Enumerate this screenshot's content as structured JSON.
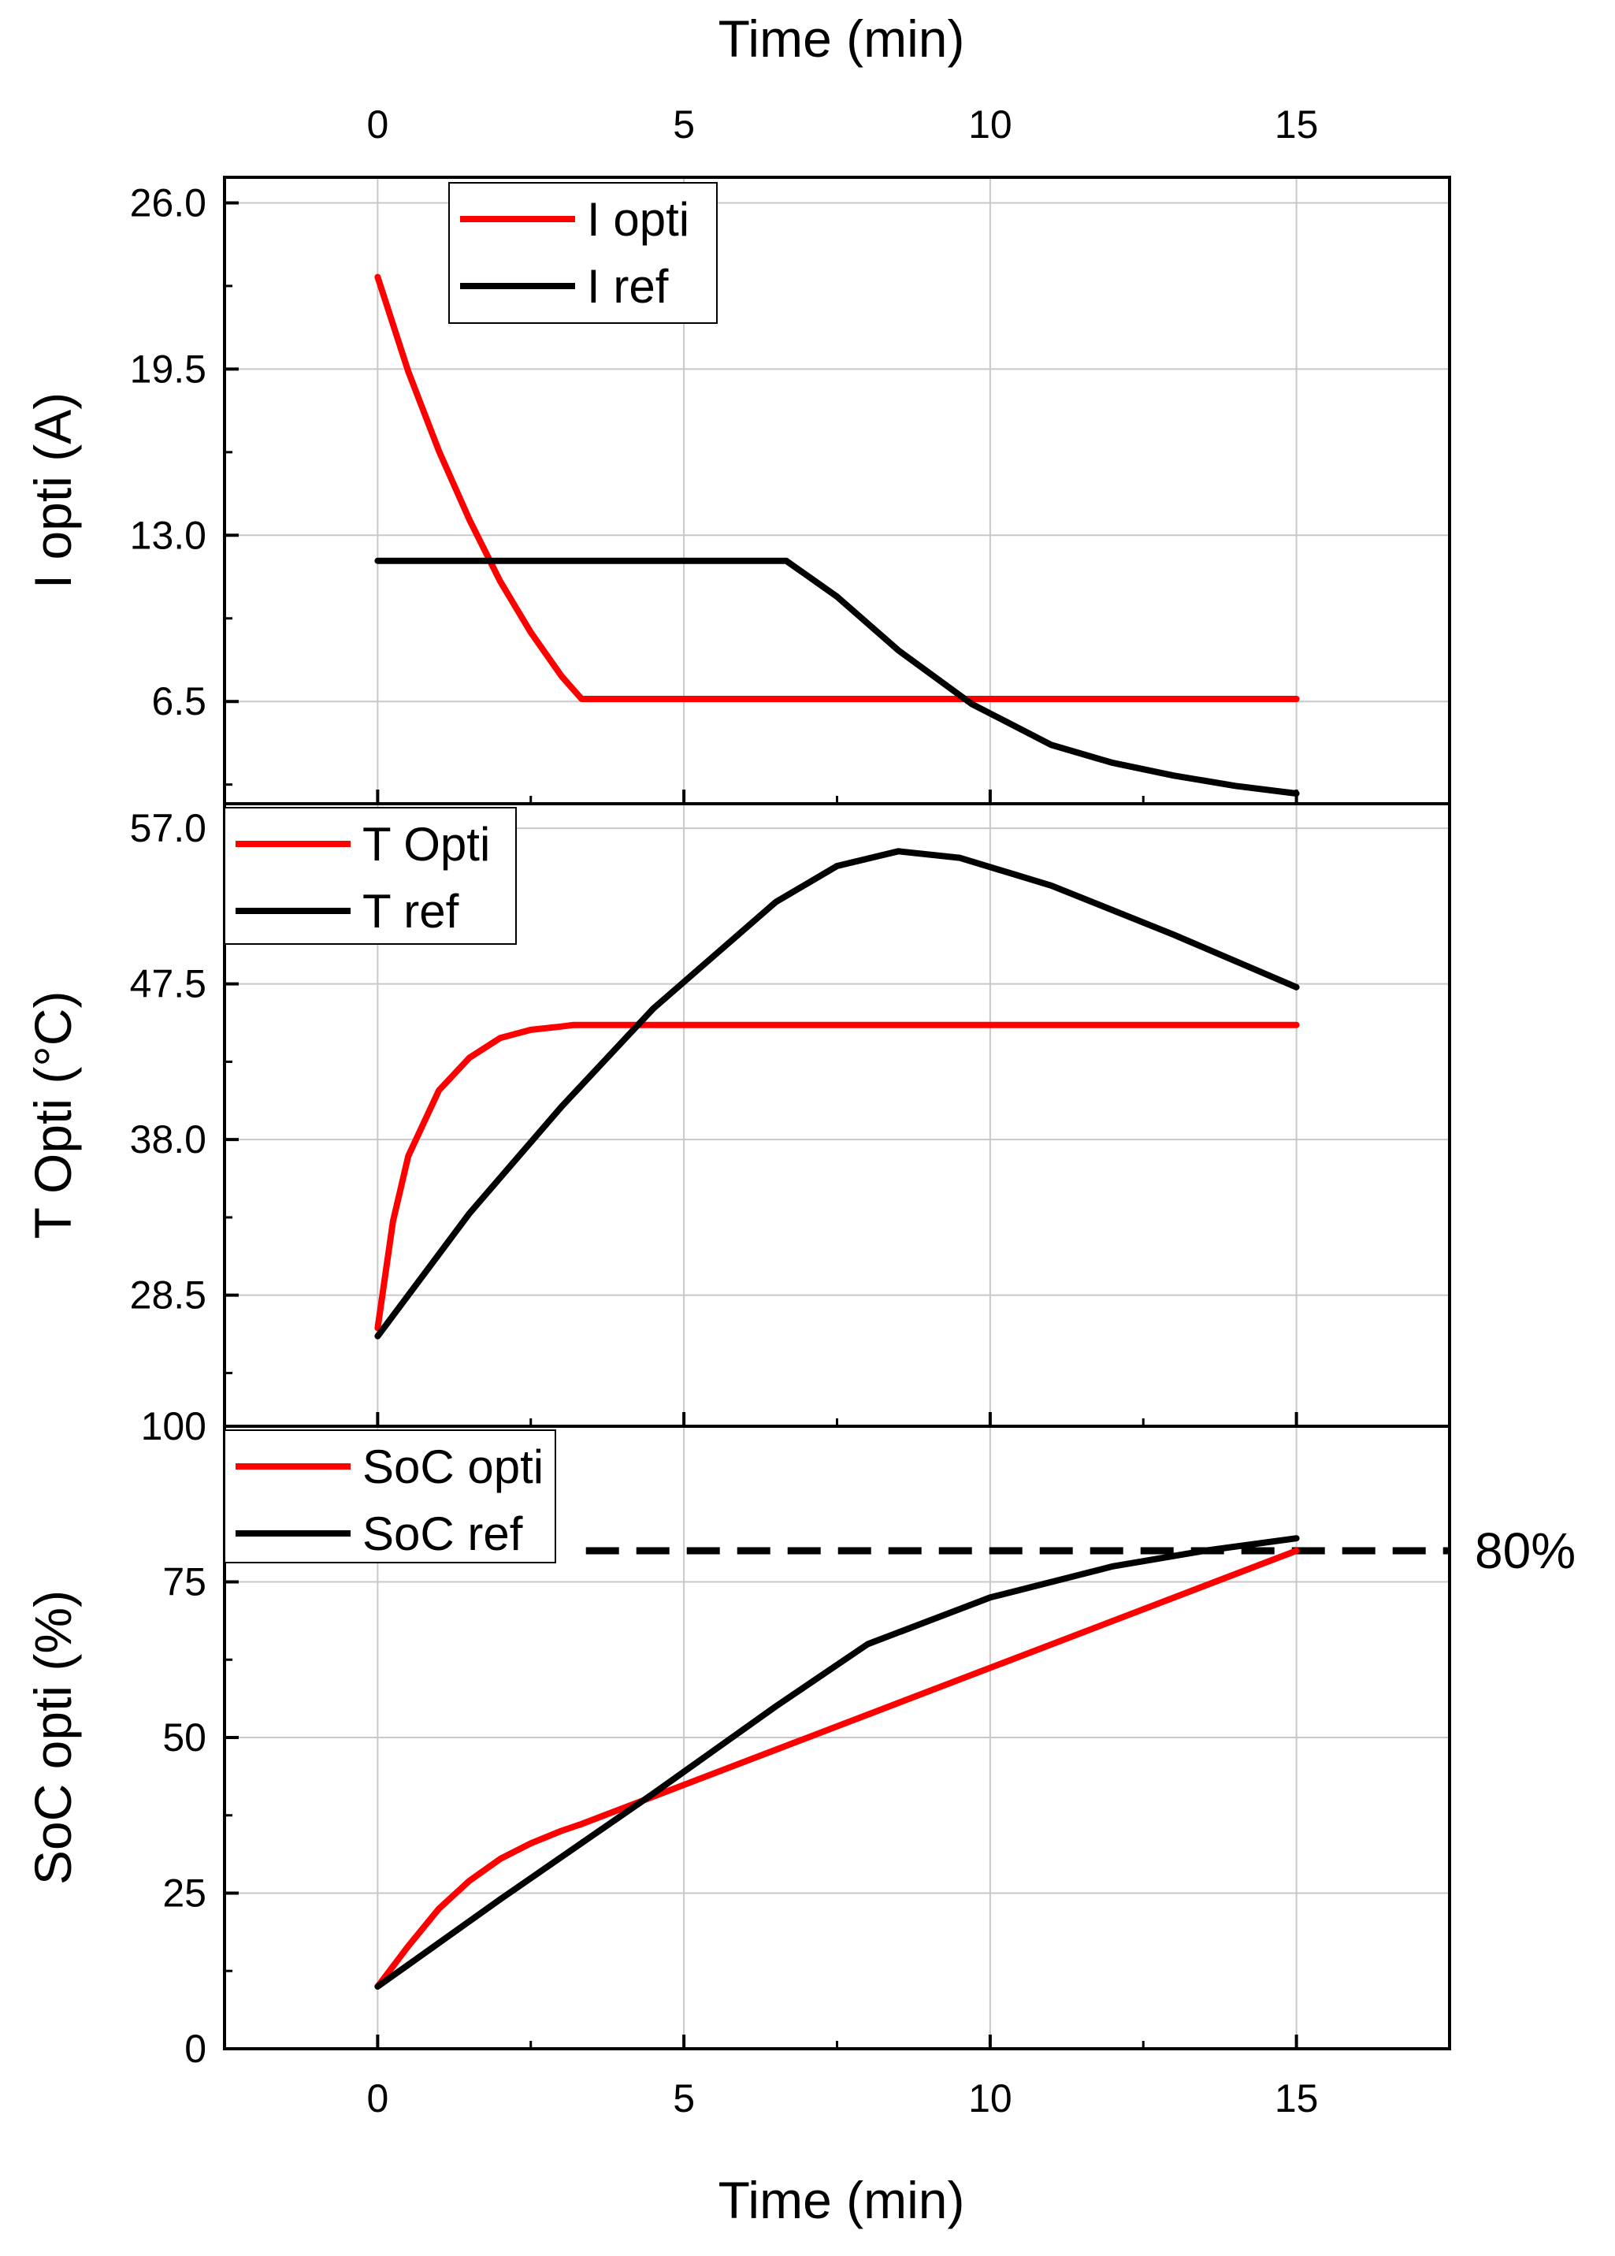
{
  "top_axis": {
    "title": "Time (min)",
    "ticks": [
      0,
      5,
      10,
      15
    ]
  },
  "bottom_axis": {
    "title": "Time (min)",
    "ticks": [
      0,
      5,
      10,
      15
    ]
  },
  "colors": {
    "opti": "#ff0000",
    "ref": "#000000",
    "grid": "#c8c8c8"
  },
  "chart_data": [
    {
      "type": "line",
      "ylabel": "I opti (A)",
      "xlim": [
        -2.5,
        17.5
      ],
      "ylim": [
        2.5,
        27
      ],
      "yticks": [
        "26.0",
        "19.5",
        "13.0",
        "6.5"
      ],
      "legend": "top-left",
      "series": [
        {
          "name": "I opti",
          "color": "#ff0000",
          "x": [
            0,
            0.5,
            1.0,
            1.5,
            2.0,
            2.5,
            3.0,
            3.33,
            15
          ],
          "y": [
            23.1,
            19.4,
            16.3,
            13.6,
            11.2,
            9.2,
            7.5,
            6.6,
            6.6
          ]
        },
        {
          "name": "I ref",
          "color": "#000000",
          "x": [
            0,
            6.67,
            7.5,
            8.5,
            9.7,
            11,
            12,
            13,
            14,
            15
          ],
          "y": [
            12,
            12,
            10.6,
            8.5,
            6.4,
            4.8,
            4.1,
            3.6,
            3.2,
            2.9
          ]
        }
      ]
    },
    {
      "type": "line",
      "ylabel": "T Opti (°C)",
      "xlim": [
        -2.5,
        17.5
      ],
      "ylim": [
        20.5,
        58.5
      ],
      "yticks": [
        "57.0",
        "47.5",
        "38.0",
        "28.5"
      ],
      "legend": "top-left",
      "series": [
        {
          "name": "T Opti",
          "color": "#ff0000",
          "x": [
            0,
            0.25,
            0.5,
            1.0,
            1.5,
            2.0,
            2.5,
            3.0,
            3.2,
            15
          ],
          "y": [
            26.5,
            33,
            37,
            41,
            43,
            44.2,
            44.7,
            44.9,
            45,
            45
          ]
        },
        {
          "name": "T ref",
          "color": "#000000",
          "x": [
            0,
            1.5,
            3,
            4.5,
            6.5,
            7.5,
            8.5,
            9.5,
            11,
            13,
            15
          ],
          "y": [
            26,
            33.5,
            40,
            46,
            52.5,
            54.7,
            55.6,
            55.2,
            53.5,
            50.5,
            47.3
          ]
        }
      ]
    },
    {
      "type": "line",
      "ylabel": "SoC opti (%)",
      "xlim": [
        -2.5,
        17.5
      ],
      "ylim": [
        0,
        100
      ],
      "yticks": [
        "100",
        "75",
        "50",
        "25",
        "0"
      ],
      "legend": "top-left",
      "annotation": {
        "label": "80%",
        "y": 80,
        "x_from": 3.4,
        "x_to": 17.5
      },
      "series": [
        {
          "name": "SoC opti",
          "color": "#ff0000",
          "x": [
            0,
            0.5,
            1.0,
            1.5,
            2.0,
            2.5,
            3.0,
            3.3,
            15
          ],
          "y": [
            10,
            16.5,
            22.5,
            27,
            30.5,
            33,
            35,
            36,
            80
          ]
        },
        {
          "name": "SoC ref",
          "color": "#000000",
          "x": [
            0,
            2,
            4.5,
            6.5,
            8,
            10,
            12,
            13.5,
            15
          ],
          "y": [
            10,
            24,
            41,
            55,
            65,
            72.5,
            77.5,
            80,
            82
          ]
        }
      ]
    }
  ]
}
